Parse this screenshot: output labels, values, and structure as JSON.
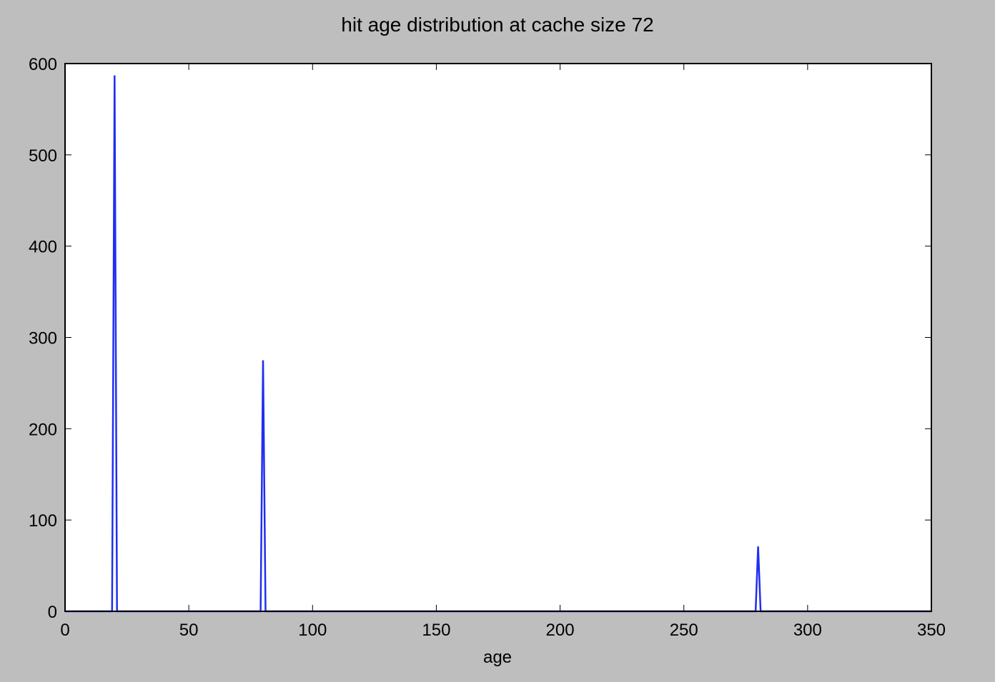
{
  "chart_data": {
    "type": "line",
    "title": "hit age distribution at cache size 72",
    "xlabel": "age",
    "ylabel": "",
    "xlim": [
      0,
      350
    ],
    "ylim": [
      0,
      600
    ],
    "xticks": [
      0,
      50,
      100,
      150,
      200,
      250,
      300,
      350
    ],
    "yticks": [
      0,
      100,
      200,
      300,
      400,
      500,
      600
    ],
    "grid": false,
    "series": [
      {
        "color": "#1f2ff0",
        "x": [
          0,
          19,
          20,
          21,
          79,
          80,
          81,
          279,
          280,
          281,
          350
        ],
        "y": [
          0,
          0,
          587,
          0,
          0,
          275,
          0,
          0,
          71,
          0,
          0
        ]
      }
    ]
  },
  "colors": {
    "background": "#bebebe",
    "plot_area": "#ffffff",
    "axes": "#000000"
  }
}
